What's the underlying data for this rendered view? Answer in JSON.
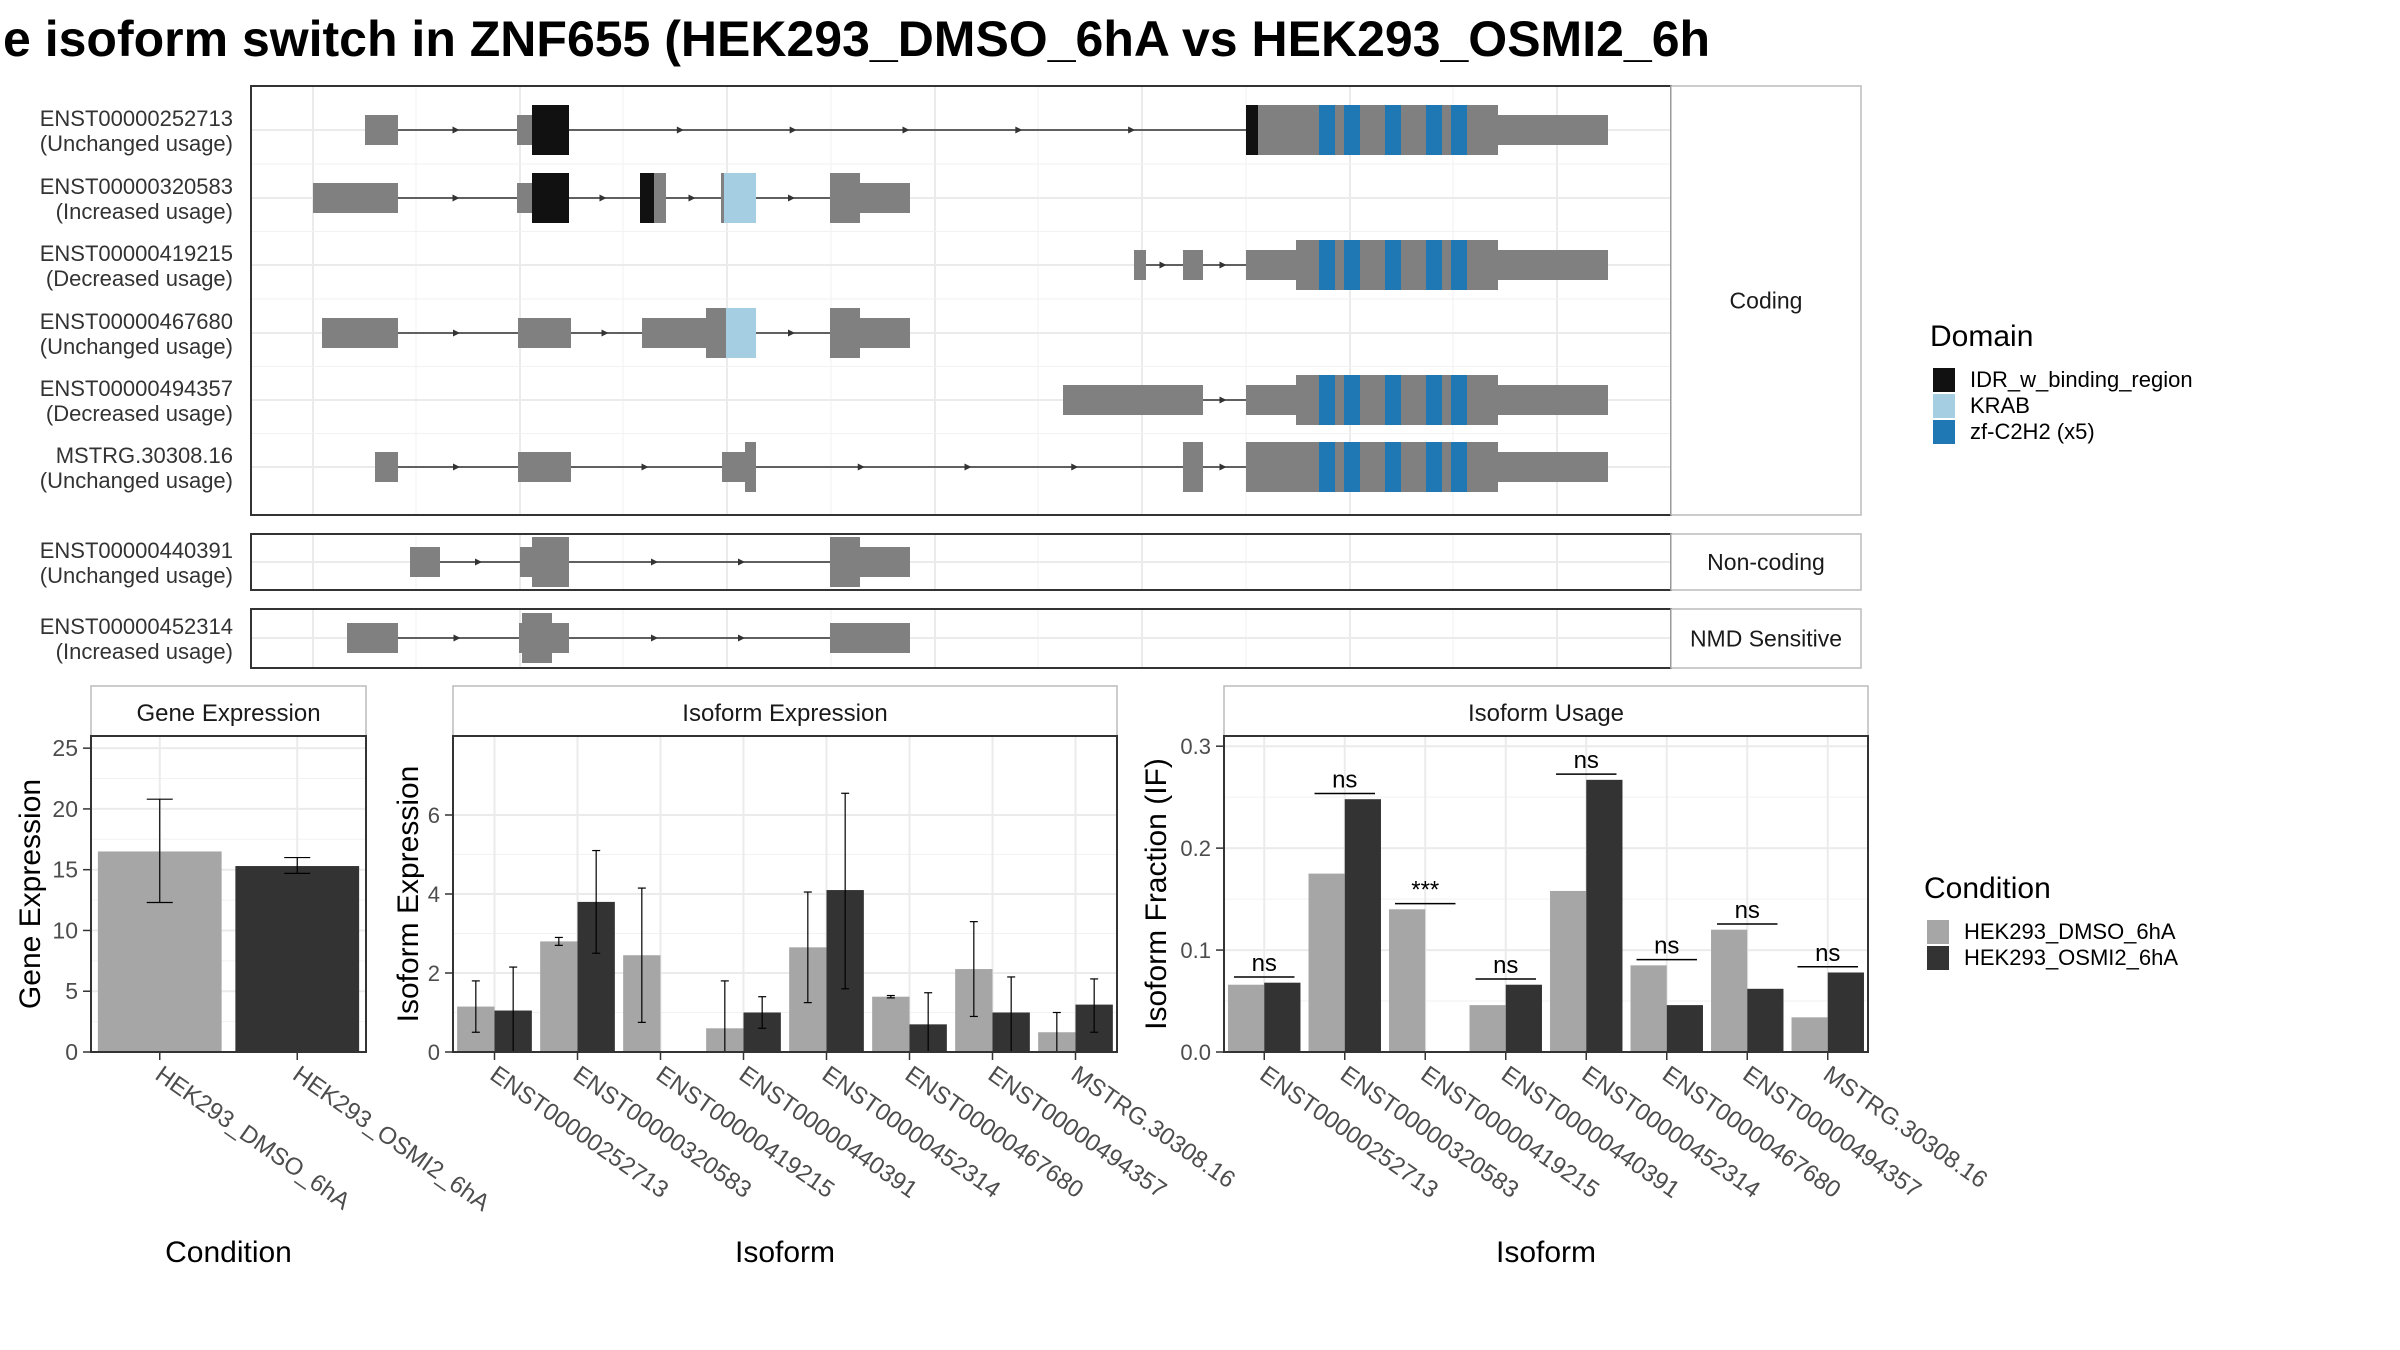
{
  "title": "e isoform switch in ZNF655 (HEK293_DMSO_6hA vs HEK293_OSMI2_6h",
  "colors": {
    "exon": "#808080",
    "domains": {
      "IDR_w_binding_region": "#111111",
      "KRAB": "#a6cee3",
      "zf-C2H2 (x5)": "#1f78b4"
    },
    "conditions": {
      "HEK293_DMSO_6hA": "#a6a6a6",
      "HEK293_OSMI2_6hA": "#333333"
    }
  },
  "structure": {
    "panels": [
      {
        "label": "Coding",
        "transcripts": [
          {
            "id": "ENST00000252713",
            "usage": "(Unchanged usage)",
            "layout": "A"
          },
          {
            "id": "ENST00000320583",
            "usage": "(Increased usage)",
            "layout": "B"
          },
          {
            "id": "ENST00000419215",
            "usage": "(Decreased usage)",
            "layout": "C"
          },
          {
            "id": "ENST00000467680",
            "usage": "(Unchanged usage)",
            "layout": "D"
          },
          {
            "id": "ENST00000494357",
            "usage": "(Decreased usage)",
            "layout": "E"
          },
          {
            "id": "MSTRG.30308.16",
            "usage": "(Unchanged usage)",
            "layout": "F"
          }
        ]
      },
      {
        "label": "Non-coding",
        "transcripts": [
          {
            "id": "ENST00000440391",
            "usage": "(Unchanged usage)",
            "layout": "G"
          }
        ]
      },
      {
        "label": "NMD Sensitive",
        "transcripts": [
          {
            "id": "ENST00000452314",
            "usage": "(Increased usage)",
            "layout": "H"
          }
        ]
      }
    ]
  },
  "legends": {
    "domain": {
      "title": "Domain",
      "items": [
        "IDR_w_binding_region",
        "KRAB",
        "zf-C2H2 (x5)"
      ]
    },
    "condition": {
      "title": "Condition",
      "items": [
        "HEK293_DMSO_6hA",
        "HEK293_OSMI2_6hA"
      ]
    }
  },
  "chart_data": [
    {
      "type": "bar",
      "title": "Gene Expression",
      "xlabel": "Condition",
      "ylabel": "Gene Expression",
      "ylim": [
        0,
        26
      ],
      "yticks": [
        0,
        5,
        10,
        15,
        20,
        25
      ],
      "categories": [
        "HEK293_DMSO_6hA",
        "HEK293_OSMI2_6hA"
      ],
      "values": [
        16.5,
        15.3
      ],
      "errors": [
        [
          12.3,
          20.8
        ],
        [
          14.7,
          16.0
        ]
      ]
    },
    {
      "type": "bar",
      "title": "Isoform Expression",
      "xlabel": "Isoform",
      "ylabel": "Isoform Expression",
      "ylim": [
        0,
        8
      ],
      "yticks": [
        0,
        2,
        4,
        6
      ],
      "categories": [
        "ENST00000252713",
        "ENST00000320583",
        "ENST00000419215",
        "ENST00000440391",
        "ENST00000452314",
        "ENST00000467680",
        "ENST00000494357",
        "MSTRG.30308.16"
      ],
      "series": [
        {
          "name": "HEK293_DMSO_6hA",
          "values": [
            1.15,
            2.8,
            2.45,
            0.6,
            2.65,
            1.4,
            2.1,
            0.5
          ],
          "errors": [
            [
              0.5,
              1.8
            ],
            [
              2.7,
              2.9
            ],
            [
              0.75,
              4.15
            ],
            [
              0.0,
              1.8
            ],
            [
              1.25,
              4.05
            ],
            [
              1.37,
              1.43
            ],
            [
              0.9,
              3.3
            ],
            [
              0.0,
              1.0
            ]
          ]
        },
        {
          "name": "HEK293_OSMI2_6hA",
          "values": [
            1.05,
            3.8,
            0.0,
            1.0,
            4.1,
            0.7,
            1.0,
            1.2
          ],
          "errors": [
            [
              0.0,
              2.15
            ],
            [
              2.5,
              5.1
            ],
            [
              0.0,
              0.0
            ],
            [
              0.6,
              1.4
            ],
            [
              1.6,
              6.55
            ],
            [
              0.0,
              1.5
            ],
            [
              0.0,
              1.9
            ],
            [
              0.5,
              1.85
            ]
          ]
        }
      ]
    },
    {
      "type": "bar",
      "title": "Isoform Usage",
      "xlabel": "Isoform",
      "ylabel": "Isoform Fraction (IF)",
      "ylim": [
        0,
        0.31
      ],
      "yticks": [
        0.0,
        0.1,
        0.2,
        0.3
      ],
      "categories": [
        "ENST00000252713",
        "ENST00000320583",
        "ENST00000419215",
        "ENST00000440391",
        "ENST00000452314",
        "ENST00000467680",
        "ENST00000494357",
        "MSTRG.30308.16"
      ],
      "series": [
        {
          "name": "HEK293_DMSO_6hA",
          "values": [
            0.066,
            0.175,
            0.14,
            0.046,
            0.158,
            0.085,
            0.12,
            0.034
          ]
        },
        {
          "name": "HEK293_OSMI2_6hA",
          "values": [
            0.068,
            0.248,
            0.0,
            0.066,
            0.267,
            0.046,
            0.062,
            0.078
          ]
        }
      ],
      "significance": [
        "ns",
        "ns",
        "***",
        "ns",
        "ns",
        "ns",
        "ns",
        "ns"
      ]
    }
  ]
}
